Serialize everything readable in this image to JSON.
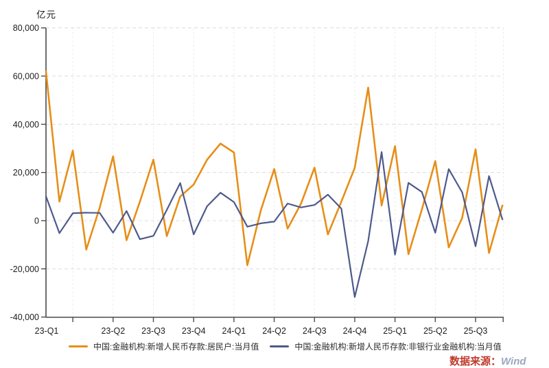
{
  "chart_data": {
    "type": "line",
    "unit_label": "亿元",
    "x_start": "2023-01",
    "x_freq": "monthly",
    "months": [
      "2023-01",
      "2023-02",
      "2023-03",
      "2023-04",
      "2023-05",
      "2023-06",
      "2023-07",
      "2023-08",
      "2023-09",
      "2023-10",
      "2023-11",
      "2023-12",
      "2024-01",
      "2024-02",
      "2024-03",
      "2024-04",
      "2024-05",
      "2024-06",
      "2024-07",
      "2024-08",
      "2024-09",
      "2024-10",
      "2024-11",
      "2024-12",
      "2025-01",
      "2025-02",
      "2025-03",
      "2025-04",
      "2025-05",
      "2025-06",
      "2025-07",
      "2025-08",
      "2025-09",
      "2025-10",
      "2025-11"
    ],
    "x_tick_labels": [
      "23-Q1",
      "23-Q2",
      "23-Q3",
      "23-Q4",
      "24-Q1",
      "24-Q2",
      "24-Q3",
      "24-Q4",
      "25-Q1",
      "25-Q2",
      "25-Q3"
    ],
    "y_ticks": [
      80000,
      60000,
      40000,
      20000,
      0,
      -20000,
      -40000
    ],
    "ylim": [
      -40000,
      80000
    ],
    "grid": "dashed-horizontal",
    "legend_position": "bottom",
    "series": [
      {
        "name": "中国:金融机构:新增人民币存款:居民户:当月值",
        "color": "#E78E17",
        "values": [
          62000,
          7900,
          29100,
          -12000,
          5400,
          26700,
          -8100,
          7900,
          25300,
          -6400,
          10000,
          15000,
          25300,
          32000,
          28300,
          -18500,
          4200,
          21400,
          -3300,
          7100,
          22000,
          -5700,
          7900,
          21900,
          55200,
          6300,
          30900,
          -13900,
          4700,
          24700,
          -11100,
          1100,
          29600,
          -13400,
          6300
        ]
      },
      {
        "name": "中国:金融机构:新增人民币存款:非银行业金融机构:当月值",
        "color": "#4D598C",
        "values": [
          10100,
          -5163,
          3100,
          3300,
          3200,
          -5000,
          4000,
          -7700,
          -6300,
          4500,
          15600,
          -5700,
          6000,
          11600,
          7700,
          -2500,
          -1100,
          -400,
          7100,
          5500,
          6500,
          10800,
          5000,
          -31700,
          -8500,
          28500,
          -14100,
          15700,
          11900,
          -5000,
          21400,
          11800,
          -10600,
          18500,
          500
        ]
      }
    ]
  },
  "watermark": {
    "source_label": "数据来源：",
    "source_value": "Wind"
  },
  "style_colors": {
    "axis": "#4a4a4a",
    "tick_text": "#1c1c1c",
    "grid": "#dcdcdc",
    "vgrid": "#ececec",
    "watermark_red": "#c0392b"
  }
}
